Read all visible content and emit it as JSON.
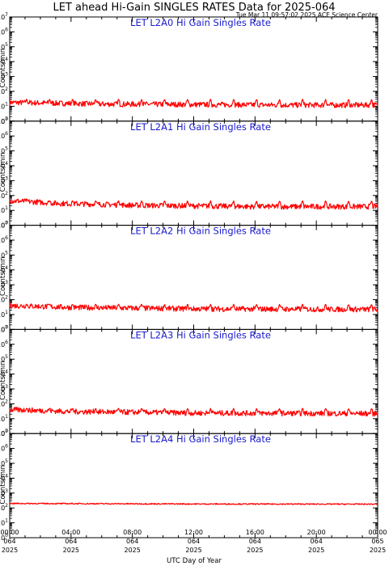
{
  "title": "LET ahead Hi-Gain SINGLES RATES Data for 2025-064",
  "subtitle": "Tue Mar 11 09:57:02 2025 ACE Science Center",
  "x_axis_label": "UTC Day of Year",
  "y_axis_label": "Counts/min",
  "colors": {
    "series": "#ff0000",
    "panel_title": "#1a1acc",
    "axes": "#000000"
  },
  "chart_data": [
    {
      "type": "line",
      "title": "LET L2A0 Hi Gain Singles Rate",
      "ylabel": "Counts/min",
      "yscale": "log",
      "ylim": [
        1,
        10000000
      ],
      "xlim": [
        0,
        24
      ],
      "x_unit": "hours UTC, 2025-064",
      "baseline": [
        [
          0,
          18
        ],
        [
          6,
          14
        ],
        [
          12,
          13
        ],
        [
          18,
          12
        ],
        [
          24,
          12
        ]
      ],
      "spike_hours": [
        1.1,
        2.6,
        4.1,
        5.6,
        7.1,
        8.6,
        10.1,
        11.6,
        13.1,
        14.6,
        16.1,
        17.6,
        19.1,
        20.6,
        22.1,
        23.6
      ],
      "spike_peak": 30
    },
    {
      "type": "line",
      "title": "LET L2A1 Hi Gain Singles Rate",
      "ylabel": "Counts/min",
      "yscale": "log",
      "ylim": [
        1,
        10000000
      ],
      "xlim": [
        0,
        24
      ],
      "x_unit": "hours UTC, 2025-064",
      "baseline": [
        [
          0,
          45
        ],
        [
          3,
          30
        ],
        [
          8,
          22
        ],
        [
          16,
          18
        ],
        [
          24,
          18
        ]
      ],
      "spike_hours": [
        1.1,
        2.6,
        4.1,
        5.6,
        7.1,
        8.6,
        10.1,
        11.6,
        13.1,
        14.6,
        16.1,
        17.6,
        19.1,
        20.6,
        22.1,
        23.6
      ],
      "spike_peak": 45
    },
    {
      "type": "line",
      "title": "LET L2A2 Hi Gain Singles Rate",
      "ylabel": "Counts/min",
      "yscale": "log",
      "ylim": [
        1,
        10000000
      ],
      "xlim": [
        0,
        24
      ],
      "x_unit": "hours UTC, 2025-064",
      "baseline": [
        [
          0,
          40
        ],
        [
          4,
          30
        ],
        [
          12,
          24
        ],
        [
          24,
          22
        ]
      ],
      "spike_hours": [
        1.1,
        2.6,
        4.1,
        5.6,
        7.1,
        8.6,
        10.1,
        11.6,
        13.1,
        14.6,
        16.1,
        17.6,
        19.1,
        20.6,
        22.1,
        23.6
      ],
      "spike_peak": 50
    },
    {
      "type": "line",
      "title": "LET L2A3 Hi Gain Singles Rate",
      "ylabel": "Counts/min",
      "yscale": "log",
      "ylim": [
        1,
        10000000
      ],
      "xlim": [
        0,
        24
      ],
      "x_unit": "hours UTC, 2025-064",
      "baseline": [
        [
          0,
          40
        ],
        [
          4,
          30
        ],
        [
          12,
          24
        ],
        [
          24,
          22
        ]
      ],
      "spike_hours": [
        1.1,
        2.6,
        4.1,
        5.6,
        7.1,
        8.6,
        10.1,
        11.6,
        13.1,
        14.6,
        16.1,
        17.6,
        19.1,
        20.6,
        22.1,
        23.6
      ],
      "spike_peak": 50
    },
    {
      "type": "line",
      "title": "LET L2A4 Hi Gain Singles Rate",
      "ylabel": "Counts/min",
      "yscale": "log",
      "ylim": [
        1,
        10000000
      ],
      "xlim": [
        0,
        24
      ],
      "x_unit": "hours UTC, 2025-064",
      "baseline": [
        [
          0,
          200
        ],
        [
          12,
          185
        ],
        [
          24,
          180
        ]
      ],
      "spike_hours": [],
      "spike_peak": 0
    }
  ],
  "y_tick_labels": [
    {
      "base": "10",
      "exp": "0"
    },
    {
      "base": "10",
      "exp": "1"
    },
    {
      "base": "10",
      "exp": "2"
    },
    {
      "base": "10",
      "exp": "3"
    },
    {
      "base": "10",
      "exp": "4"
    },
    {
      "base": "10",
      "exp": "5"
    },
    {
      "base": "10",
      "exp": "6"
    },
    {
      "base": "10",
      "exp": "7"
    }
  ],
  "x_tick_labels": [
    {
      "time": "00:00",
      "doy": "064",
      "year": "2025"
    },
    {
      "time": "04:00",
      "doy": "064",
      "year": "2025"
    },
    {
      "time": "08:00",
      "doy": "064",
      "year": "2025"
    },
    {
      "time": "12:00",
      "doy": "064",
      "year": "2025"
    },
    {
      "time": "16:00",
      "doy": "064",
      "year": "2025"
    },
    {
      "time": "20:00",
      "doy": "064",
      "year": "2025"
    },
    {
      "time": "00:00",
      "doy": "065",
      "year": "2025"
    }
  ]
}
